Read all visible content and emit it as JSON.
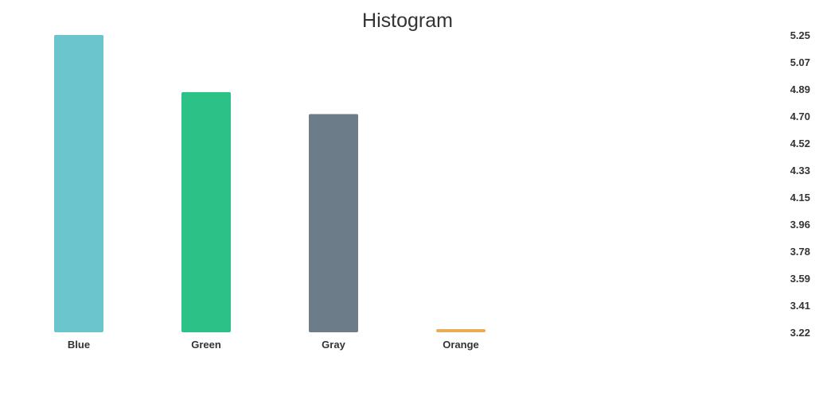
{
  "chart_data": {
    "type": "bar",
    "title": "Histogram",
    "xlabel": "",
    "ylabel": "",
    "categories": [
      "Blue",
      "Green",
      "Gray",
      "Orange"
    ],
    "values": [
      5.25,
      4.86,
      4.71,
      3.22
    ],
    "colors": [
      "#6bc5cc",
      "#2bc187",
      "#6c7c89",
      "#e9ad5a"
    ],
    "ylim": [
      3.22,
      5.25
    ],
    "y_ticks": [
      "5.25",
      "5.07",
      "4.89",
      "4.70",
      "4.52",
      "4.33",
      "4.15",
      "3.96",
      "3.78",
      "3.59",
      "3.41",
      "3.22"
    ],
    "y_axis_position": "right",
    "grid": false,
    "legend": "none"
  }
}
